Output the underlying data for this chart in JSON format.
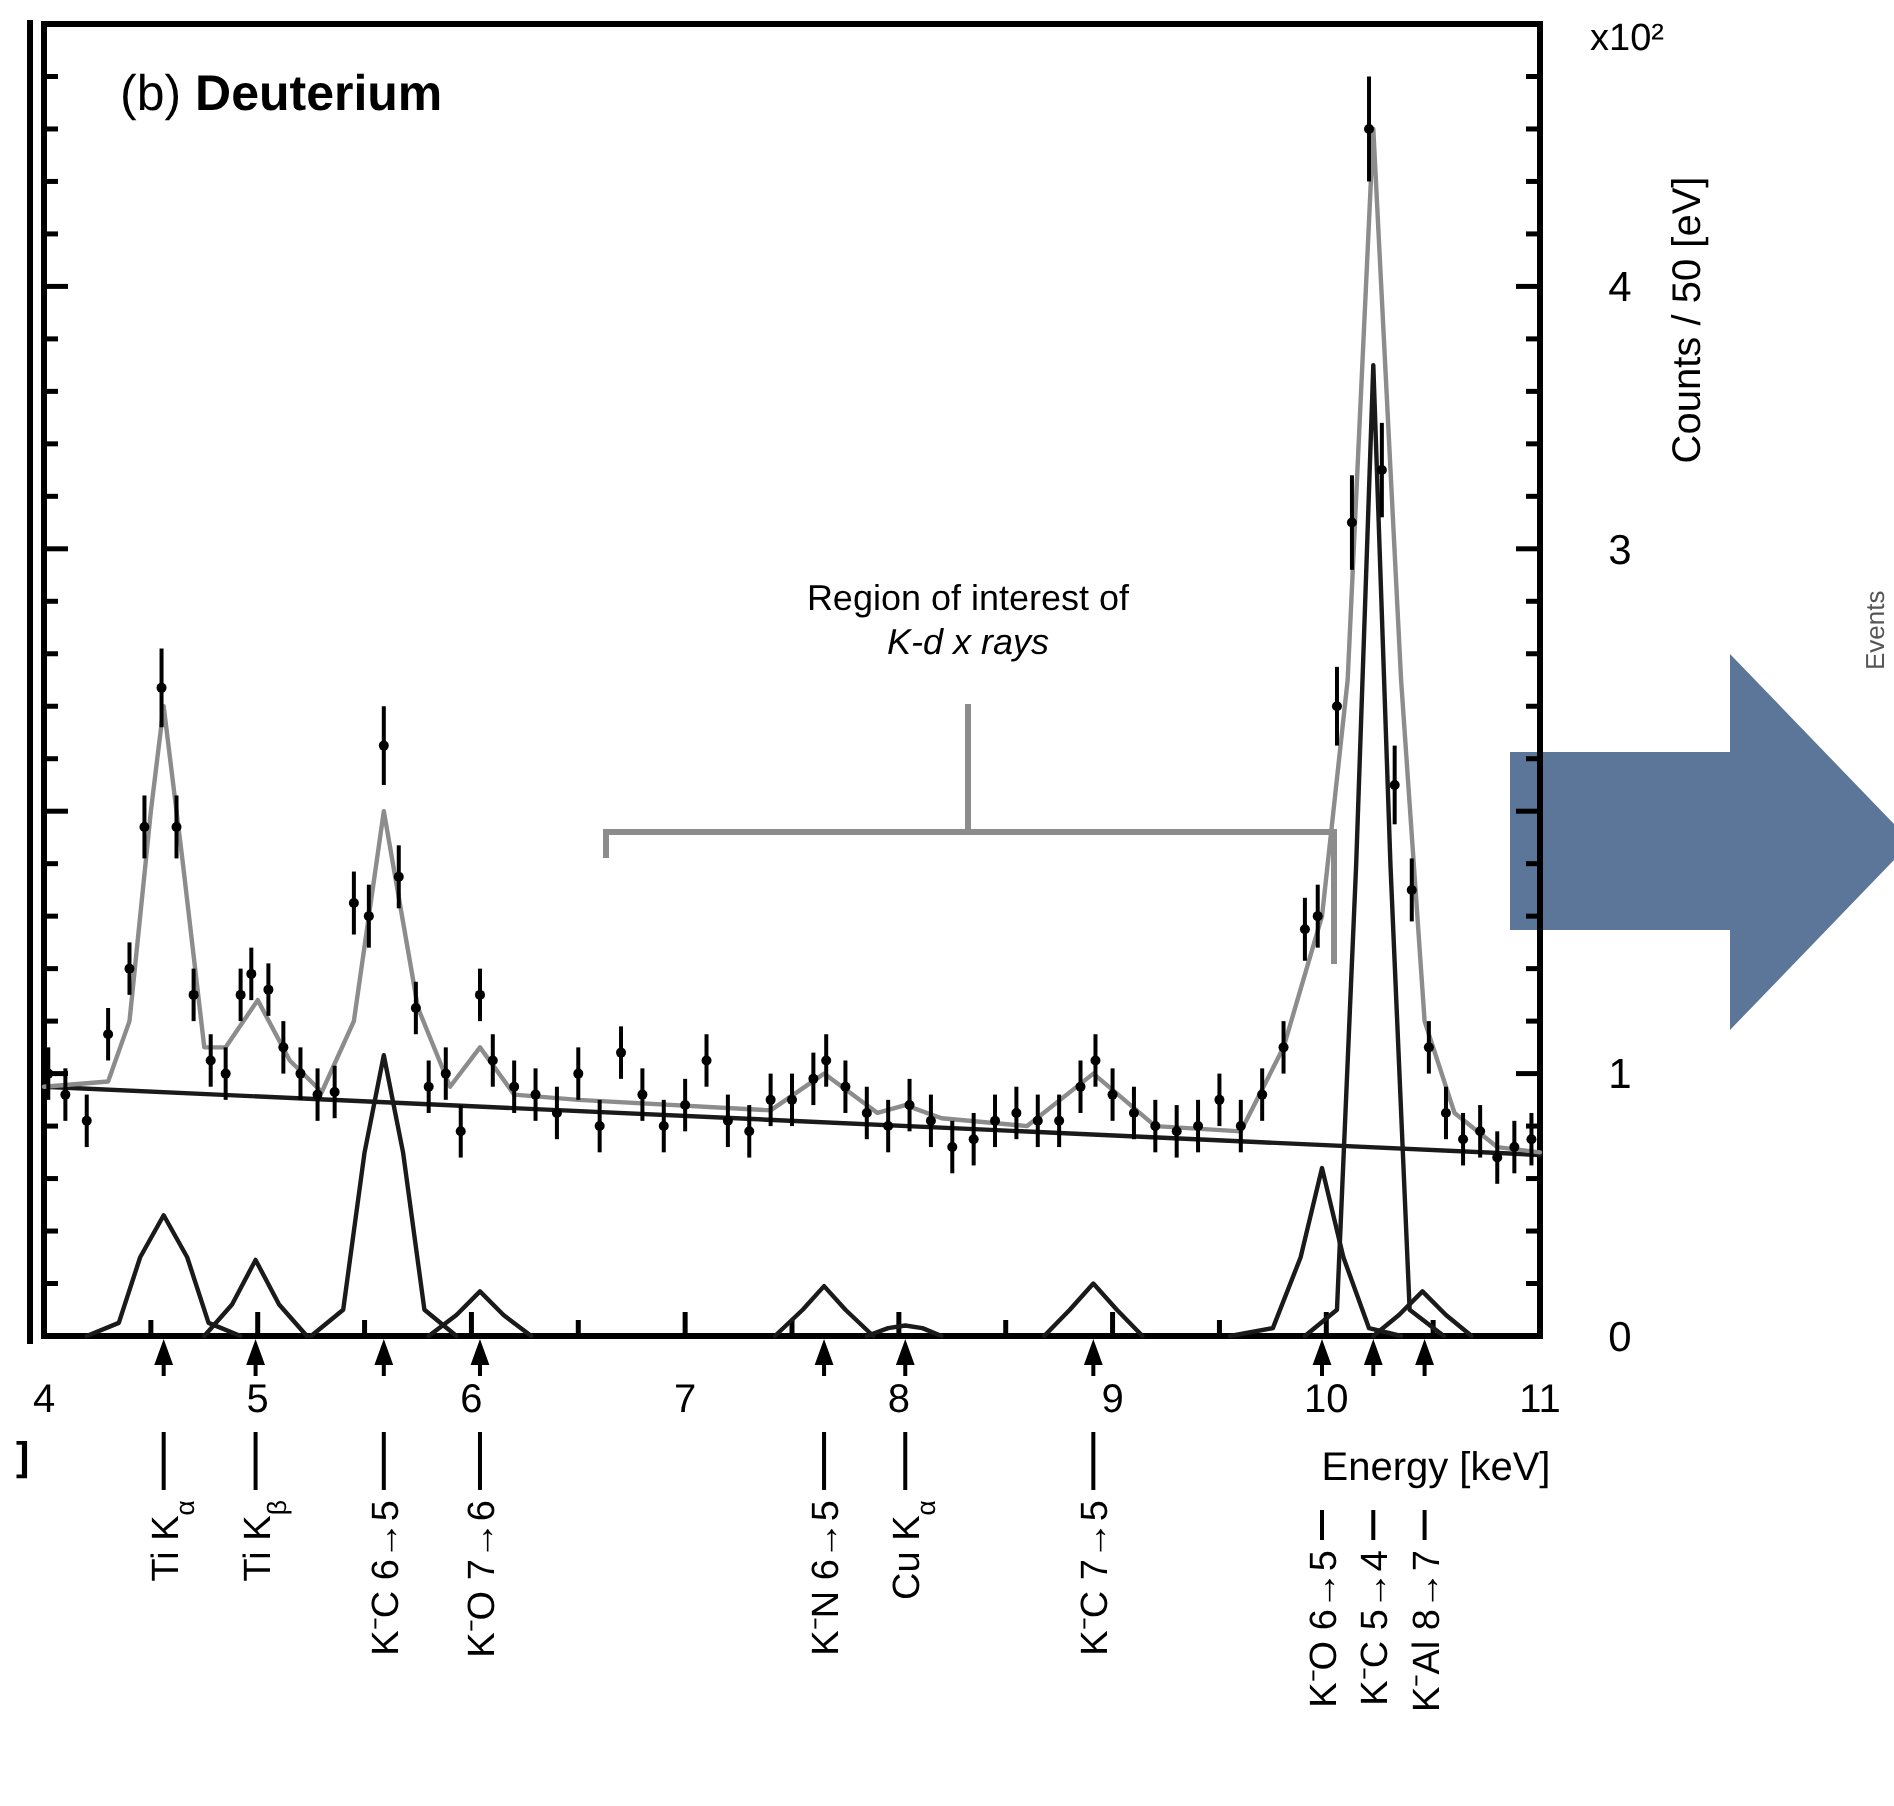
{
  "chart_data": {
    "type": "line",
    "title": "(b) Deuterium",
    "xlabel": "Energy [keV]",
    "ylabel": "Counts / 50 [eV]",
    "xlim": [
      4,
      11
    ],
    "xticks": [
      4,
      {
        "value": 4.5,
        "label": null
      },
      5,
      {
        "value": 5.5,
        "label": null
      },
      6,
      {
        "value": 6.5,
        "label": null
      },
      7,
      {
        "value": 7.5,
        "label": null
      },
      8,
      {
        "value": 8.5,
        "label": null
      },
      9,
      {
        "value": 9.5,
        "label": null
      },
      10,
      {
        "value": 10.5,
        "label": null
      },
      11
    ],
    "ylim": [
      0,
      5
    ],
    "yticks": [
      0,
      {
        "value": 0.2,
        "label": null
      },
      {
        "value": 0.4,
        "label": null
      },
      {
        "value": 0.6,
        "label": null
      },
      {
        "value": 0.8,
        "label": null
      },
      1,
      {
        "value": 1.2,
        "label": null
      },
      {
        "value": 1.4,
        "label": null
      },
      {
        "value": 1.6,
        "label": null
      },
      {
        "value": 1.8,
        "label": null
      },
      {
        "value": 2,
        "label": null
      },
      {
        "value": 2.2,
        "label": null
      },
      {
        "value": 2.4,
        "label": null
      },
      {
        "value": 2.6,
        "label": null
      },
      {
        "value": 2.8,
        "label": null
      },
      3,
      {
        "value": 3.2,
        "label": null
      },
      {
        "value": 3.4,
        "label": null
      },
      {
        "value": 3.6,
        "label": null
      },
      {
        "value": 3.8,
        "label": null
      },
      4,
      {
        "value": 4.2,
        "label": null
      },
      {
        "value": 4.4,
        "label": null
      },
      {
        "value": 4.6,
        "label": null
      },
      {
        "value": 4.8,
        "label": null
      }
    ],
    "grid": false,
    "line_style": "solid",
    "series": [
      {
        "type": "line",
        "color": "#1a1a1a",
        "x": [
          4,
          11
        ],
        "values": [
          0.95,
          0.69
        ]
      },
      {
        "type": "line",
        "color": "#1a1a1a",
        "x": [
          4.2,
          4.35,
          4.45,
          4.56,
          4.67,
          4.77,
          4.92
        ],
        "values": [
          0,
          0.05,
          0.3,
          0.46,
          0.3,
          0.05,
          0
        ]
      },
      {
        "type": "line",
        "color": "#1a1a1a",
        "x": [
          4.75,
          4.88,
          4.99,
          5.1,
          5.23
        ],
        "values": [
          0,
          0.12,
          0.29,
          0.12,
          0
        ]
      },
      {
        "type": "line",
        "color": "#1a1a1a",
        "x": [
          5.25,
          5.4,
          5.5,
          5.59,
          5.68,
          5.78,
          5.93
        ],
        "values": [
          0,
          0.1,
          0.7,
          1.07,
          0.7,
          0.1,
          0
        ]
      },
      {
        "type": "line",
        "color": "#1a1a1a",
        "x": [
          5.8,
          5.93,
          6.04,
          6.15,
          6.28
        ],
        "values": [
          0,
          0.08,
          0.17,
          0.08,
          0
        ]
      },
      {
        "type": "line",
        "color": "#1a1a1a",
        "x": [
          7.42,
          7.55,
          7.65,
          7.75,
          7.88
        ],
        "values": [
          0,
          0.1,
          0.19,
          0.1,
          0
        ]
      },
      {
        "type": "line",
        "color": "#1a1a1a",
        "x": [
          7.85,
          7.95,
          8.03,
          8.11,
          8.2
        ],
        "values": [
          0,
          0.03,
          0.04,
          0.03,
          0
        ]
      },
      {
        "type": "line",
        "color": "#1a1a1a",
        "x": [
          8.68,
          8.8,
          8.91,
          9.02,
          9.14
        ],
        "values": [
          0,
          0.1,
          0.2,
          0.1,
          0
        ]
      },
      {
        "type": "line",
        "color": "#1a1a1a",
        "x": [
          9.55,
          9.75,
          9.88,
          9.98,
          10.08,
          10.2,
          10.35
        ],
        "values": [
          0,
          0.03,
          0.3,
          0.64,
          0.3,
          0.03,
          0
        ]
      },
      {
        "type": "line",
        "color": "#1a1a1a",
        "x": [
          9.9,
          10.05,
          10.14,
          10.22,
          10.3,
          10.39,
          10.55
        ],
        "values": [
          0,
          0.1,
          1.8,
          3.7,
          1.8,
          0.1,
          0
        ]
      },
      {
        "type": "line",
        "color": "#1a1a1a",
        "x": [
          10.22,
          10.34,
          10.45,
          10.56,
          10.68
        ],
        "values": [
          0,
          0.08,
          0.17,
          0.08,
          0
        ]
      },
      {
        "type": "line",
        "color": "#8c8c8c",
        "x": [
          4,
          4.3,
          4.4,
          4.5,
          4.56,
          4.65,
          4.75,
          4.85,
          5,
          5.15,
          5.3,
          5.45,
          5.59,
          5.75,
          5.9,
          6.04,
          6.2,
          6.5,
          7.4,
          7.65,
          7.9,
          8.03,
          8.2,
          8.6,
          8.91,
          9.2,
          9.6,
          9.8,
          9.98,
          10.1,
          10.22,
          10.35,
          10.46,
          10.6,
          10.8,
          11
        ],
        "values": [
          0.95,
          0.97,
          1.2,
          2.0,
          2.4,
          1.8,
          1.1,
          1.1,
          1.28,
          1.05,
          0.93,
          1.2,
          2.0,
          1.25,
          0.95,
          1.1,
          0.92,
          0.9,
          0.86,
          1.0,
          0.85,
          0.88,
          0.83,
          0.8,
          1.0,
          0.8,
          0.78,
          1.1,
          1.6,
          2.5,
          4.6,
          2.5,
          1.2,
          0.85,
          0.72,
          0.7
        ]
      },
      {
        "type": "scatter",
        "color": "#000000",
        "marker": "circle",
        "x": [
          4.02,
          4.1,
          4.2,
          4.3,
          4.4,
          4.47,
          4.55,
          4.62,
          4.7,
          4.78,
          4.85,
          4.92,
          4.97,
          5.05,
          5.12,
          5.2,
          5.28,
          5.36,
          5.45,
          5.52,
          5.59,
          5.66,
          5.74,
          5.8,
          5.88,
          5.95,
          6.04,
          6.1,
          6.2,
          6.3,
          6.4,
          6.5,
          6.6,
          6.7,
          6.8,
          6.9,
          7.0,
          7.1,
          7.2,
          7.3,
          7.4,
          7.5,
          7.6,
          7.66,
          7.75,
          7.85,
          7.95,
          8.05,
          8.15,
          8.25,
          8.35,
          8.45,
          8.55,
          8.65,
          8.75,
          8.85,
          8.92,
          9.0,
          9.1,
          9.2,
          9.3,
          9.4,
          9.5,
          9.6,
          9.7,
          9.8,
          9.9,
          9.96,
          10.05,
          10.12,
          10.2,
          10.26,
          10.32,
          10.4,
          10.48,
          10.56,
          10.64,
          10.72,
          10.8,
          10.88,
          10.96
        ],
        "values": [
          1.0,
          0.92,
          0.82,
          1.15,
          1.4,
          1.94,
          2.47,
          1.94,
          1.3,
          1.05,
          1.0,
          1.3,
          1.38,
          1.32,
          1.1,
          1.0,
          0.92,
          0.93,
          1.65,
          1.6,
          2.25,
          1.75,
          1.25,
          0.95,
          1.0,
          0.78,
          1.3,
          1.05,
          0.95,
          0.92,
          0.85,
          1.0,
          0.8,
          1.08,
          0.92,
          0.8,
          0.88,
          1.05,
          0.82,
          0.78,
          0.9,
          0.9,
          0.98,
          1.05,
          0.95,
          0.85,
          0.8,
          0.88,
          0.82,
          0.72,
          0.75,
          0.82,
          0.85,
          0.82,
          0.82,
          0.95,
          1.05,
          0.92,
          0.85,
          0.8,
          0.78,
          0.8,
          0.9,
          0.8,
          0.92,
          1.1,
          1.55,
          1.6,
          2.4,
          3.1,
          4.6,
          3.3,
          2.1,
          1.7,
          1.1,
          0.85,
          0.75,
          0.78,
          0.68,
          0.72,
          0.75
        ],
        "errors": [
          0.1,
          0.1,
          0.1,
          0.1,
          0.1,
          0.12,
          0.15,
          0.12,
          0.1,
          0.1,
          0.1,
          0.1,
          0.1,
          0.1,
          0.1,
          0.1,
          0.1,
          0.1,
          0.12,
          0.12,
          0.15,
          0.12,
          0.1,
          0.1,
          0.1,
          0.1,
          0.1,
          0.1,
          0.1,
          0.1,
          0.1,
          0.1,
          0.1,
          0.1,
          0.1,
          0.1,
          0.1,
          0.1,
          0.1,
          0.1,
          0.1,
          0.1,
          0.1,
          0.1,
          0.1,
          0.1,
          0.1,
          0.1,
          0.1,
          0.1,
          0.1,
          0.1,
          0.1,
          0.1,
          0.1,
          0.1,
          0.1,
          0.1,
          0.1,
          0.1,
          0.1,
          0.1,
          0.1,
          0.1,
          0.1,
          0.1,
          0.12,
          0.12,
          0.15,
          0.18,
          0.2,
          0.18,
          0.15,
          0.12,
          0.1,
          0.1,
          0.1,
          0.1,
          0.1,
          0.1,
          0.1
        ]
      }
    ],
    "annotations": [
      "x10²",
      "Events",
      "]",
      "Region of interest of K-d x rays",
      {
        "text": "Ti K$_{α}$",
        "x": 4.56
      },
      {
        "text": "Ti K$_{β}$",
        "x": 4.99
      },
      {
        "text": "K⁻C 6→5",
        "x": 5.59
      },
      {
        "text": "K⁻O 7→6",
        "x": 6.04
      },
      {
        "text": "K⁻N 6→5",
        "x": 7.65
      },
      {
        "text": "Cu K$_{α}$",
        "x": 8.03
      },
      {
        "text": "K⁻C 7→5",
        "x": 8.91
      },
      {
        "text": "K⁻O 6→5",
        "x": 9.98
      },
      {
        "text": "K⁻C 5→4",
        "x": 10.22
      },
      {
        "text": "K⁻Al 8→7",
        "x": 10.46
      }
    ]
  }
}
